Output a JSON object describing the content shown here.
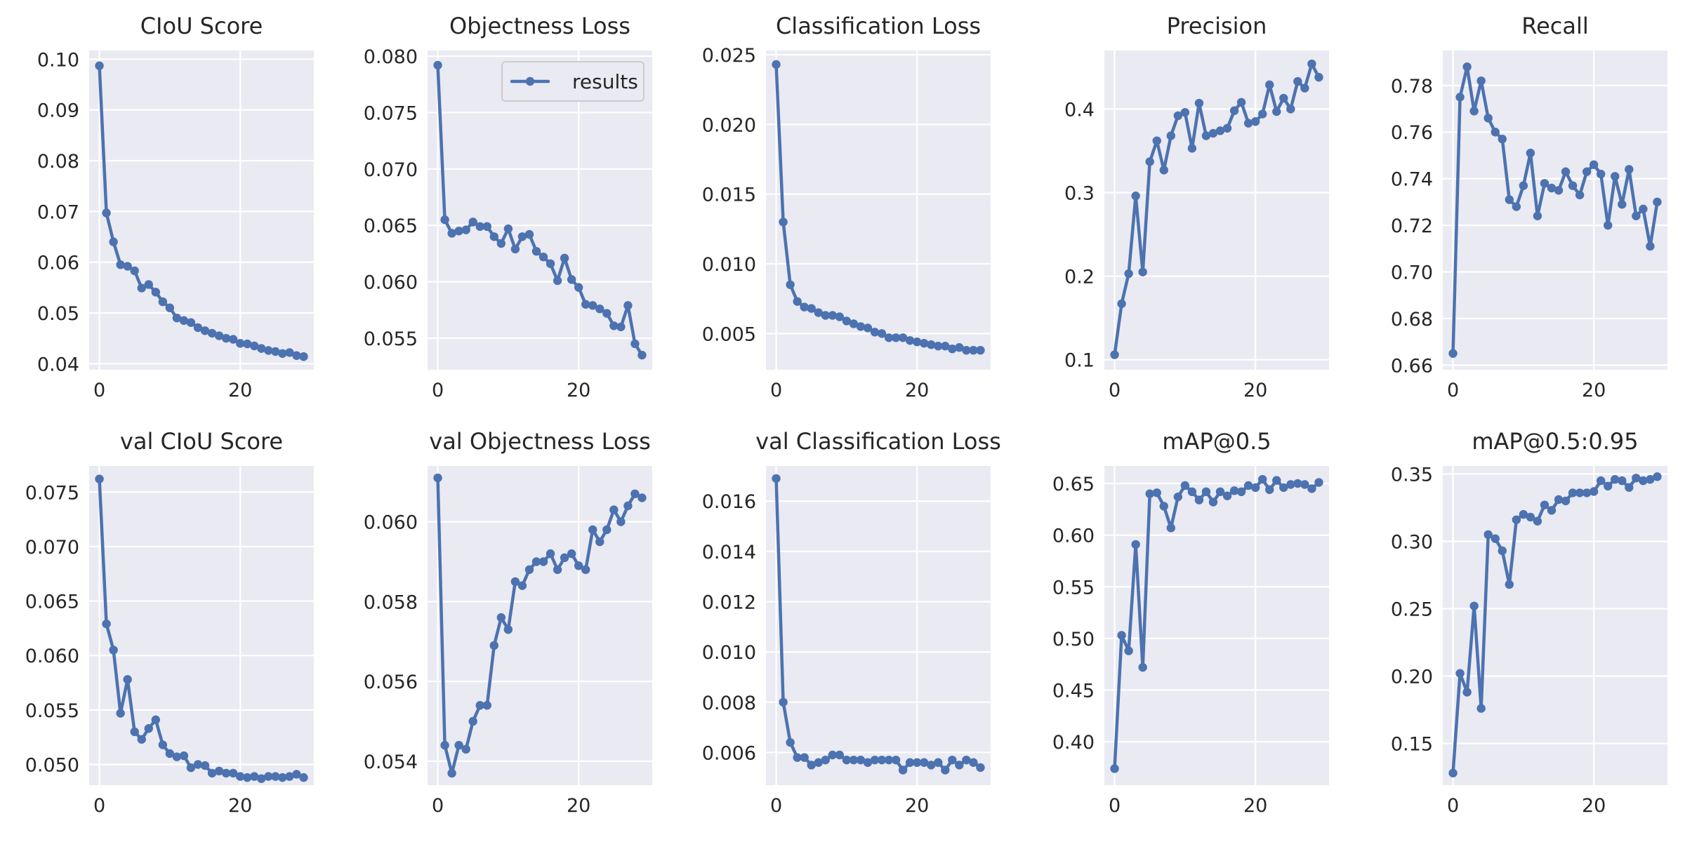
{
  "style": {
    "plot_background": "#EAEAF2",
    "grid_color": "#FFFFFF",
    "line_color": "#4C72B0",
    "text_color": "#262626"
  },
  "legend": {
    "label": "results",
    "panel": 1,
    "placement": "upper-right"
  },
  "chart_data": [
    {
      "type": "line",
      "title": "CIoU Score",
      "xlim": [
        -1.45,
        30.45
      ],
      "ylim": [
        0.0388,
        0.1017
      ],
      "xticks": [
        0,
        20
      ],
      "xtick_labels": [
        "0",
        "20"
      ],
      "yticks": [
        0.04,
        0.05,
        0.06,
        0.07,
        0.08,
        0.09,
        0.1
      ],
      "ytick_labels": [
        "0.04",
        "0.05",
        "0.06",
        "0.07",
        "0.08",
        "0.09",
        "0.10"
      ],
      "x": [
        0,
        1,
        2,
        3,
        4,
        5,
        6,
        7,
        8,
        9,
        10,
        11,
        12,
        13,
        14,
        15,
        16,
        17,
        18,
        19,
        20,
        21,
        22,
        23,
        24,
        25,
        26,
        27,
        28,
        29
      ],
      "series": [
        {
          "values": [
            0.0987,
            0.0697,
            0.064,
            0.0595,
            0.0592,
            0.0583,
            0.0549,
            0.0556,
            0.0541,
            0.0522,
            0.051,
            0.049,
            0.0485,
            0.0481,
            0.0471,
            0.0465,
            0.046,
            0.0455,
            0.045,
            0.0448,
            0.044,
            0.0439,
            0.0435,
            0.043,
            0.0426,
            0.0424,
            0.042,
            0.0422,
            0.0416,
            0.0414
          ]
        }
      ]
    },
    {
      "type": "line",
      "title": "Objectness Loss",
      "xlim": [
        -1.45,
        30.45
      ],
      "ylim": [
        0.0522,
        0.0805
      ],
      "xticks": [
        0,
        20
      ],
      "xtick_labels": [
        "0",
        "20"
      ],
      "yticks": [
        0.055,
        0.06,
        0.065,
        0.07,
        0.075,
        0.08
      ],
      "ytick_labels": [
        "0.055",
        "0.060",
        "0.065",
        "0.070",
        "0.075",
        "0.080"
      ],
      "x": [
        0,
        1,
        2,
        3,
        4,
        5,
        6,
        7,
        8,
        9,
        10,
        11,
        12,
        13,
        14,
        15,
        16,
        17,
        18,
        19,
        20,
        21,
        22,
        23,
        24,
        25,
        26,
        27,
        28,
        29
      ],
      "series": [
        {
          "name": "results",
          "values": [
            0.0792,
            0.0655,
            0.0643,
            0.0645,
            0.0646,
            0.0653,
            0.0649,
            0.0649,
            0.064,
            0.0634,
            0.0647,
            0.0629,
            0.064,
            0.0642,
            0.0627,
            0.0622,
            0.0616,
            0.0601,
            0.0621,
            0.0602,
            0.0595,
            0.058,
            0.0579,
            0.0576,
            0.0572,
            0.0561,
            0.056,
            0.0579,
            0.0545,
            0.0535
          ]
        }
      ]
    },
    {
      "type": "line",
      "title": "Classification Loss",
      "xlim": [
        -1.45,
        30.45
      ],
      "ylim": [
        0.0024,
        0.0253
      ],
      "xticks": [
        0,
        20
      ],
      "xtick_labels": [
        "0",
        "20"
      ],
      "yticks": [
        0.005,
        0.01,
        0.015,
        0.02,
        0.025
      ],
      "ytick_labels": [
        "0.005",
        "0.010",
        "0.015",
        "0.020",
        "0.025"
      ],
      "x": [
        0,
        1,
        2,
        3,
        4,
        5,
        6,
        7,
        8,
        9,
        10,
        11,
        12,
        13,
        14,
        15,
        16,
        17,
        18,
        19,
        20,
        21,
        22,
        23,
        24,
        25,
        26,
        27,
        28,
        29
      ],
      "series": [
        {
          "values": [
            0.0243,
            0.013,
            0.0085,
            0.0073,
            0.0069,
            0.0068,
            0.0065,
            0.0063,
            0.0063,
            0.0062,
            0.0059,
            0.0057,
            0.0055,
            0.0054,
            0.0051,
            0.005,
            0.0047,
            0.0047,
            0.0047,
            0.0045,
            0.0044,
            0.0043,
            0.0042,
            0.0041,
            0.0041,
            0.0039,
            0.004,
            0.0038,
            0.0038,
            0.0038
          ]
        }
      ]
    },
    {
      "type": "line",
      "title": "Precision",
      "xlim": [
        -1.45,
        30.45
      ],
      "ylim": [
        0.088,
        0.47
      ],
      "xticks": [
        0,
        20
      ],
      "xtick_labels": [
        "0",
        "20"
      ],
      "yticks": [
        0.1,
        0.2,
        0.3,
        0.4
      ],
      "ytick_labels": [
        "0.1",
        "0.2",
        "0.3",
        "0.4"
      ],
      "x": [
        0,
        1,
        2,
        3,
        4,
        5,
        6,
        7,
        8,
        9,
        10,
        11,
        12,
        13,
        14,
        15,
        16,
        17,
        18,
        19,
        20,
        21,
        22,
        23,
        24,
        25,
        26,
        27,
        28,
        29
      ],
      "series": [
        {
          "values": [
            0.106,
            0.167,
            0.203,
            0.296,
            0.205,
            0.337,
            0.362,
            0.327,
            0.368,
            0.392,
            0.396,
            0.353,
            0.407,
            0.368,
            0.371,
            0.374,
            0.377,
            0.398,
            0.408,
            0.383,
            0.385,
            0.394,
            0.429,
            0.397,
            0.413,
            0.4,
            0.433,
            0.425,
            0.454,
            0.438
          ]
        }
      ]
    },
    {
      "type": "line",
      "title": "Recall",
      "xlim": [
        -1.45,
        30.45
      ],
      "ylim": [
        0.658,
        0.795
      ],
      "xticks": [
        0,
        20
      ],
      "xtick_labels": [
        "0",
        "20"
      ],
      "yticks": [
        0.66,
        0.68,
        0.7,
        0.72,
        0.74,
        0.76,
        0.78
      ],
      "ytick_labels": [
        "0.66",
        "0.68",
        "0.70",
        "0.72",
        "0.74",
        "0.76",
        "0.78"
      ],
      "x": [
        0,
        1,
        2,
        3,
        4,
        5,
        6,
        7,
        8,
        9,
        10,
        11,
        12,
        13,
        14,
        15,
        16,
        17,
        18,
        19,
        20,
        21,
        22,
        23,
        24,
        25,
        26,
        27,
        28,
        29
      ],
      "series": [
        {
          "values": [
            0.665,
            0.775,
            0.788,
            0.769,
            0.782,
            0.766,
            0.76,
            0.757,
            0.731,
            0.728,
            0.737,
            0.751,
            0.724,
            0.738,
            0.736,
            0.735,
            0.743,
            0.737,
            0.733,
            0.743,
            0.746,
            0.742,
            0.72,
            0.741,
            0.729,
            0.744,
            0.724,
            0.727,
            0.711,
            0.73
          ]
        }
      ]
    },
    {
      "type": "line",
      "title": "val CIoU Score",
      "xlim": [
        -1.45,
        30.45
      ],
      "ylim": [
        0.0481,
        0.0774
      ],
      "xticks": [
        0,
        20
      ],
      "xtick_labels": [
        "0",
        "20"
      ],
      "yticks": [
        0.05,
        0.055,
        0.06,
        0.065,
        0.07,
        0.075
      ],
      "ytick_labels": [
        "0.050",
        "0.055",
        "0.060",
        "0.065",
        "0.070",
        "0.075"
      ],
      "x": [
        0,
        1,
        2,
        3,
        4,
        5,
        6,
        7,
        8,
        9,
        10,
        11,
        12,
        13,
        14,
        15,
        16,
        17,
        18,
        19,
        20,
        21,
        22,
        23,
        24,
        25,
        26,
        27,
        28,
        29
      ],
      "series": [
        {
          "values": [
            0.0762,
            0.0629,
            0.0605,
            0.0547,
            0.0578,
            0.053,
            0.0523,
            0.0533,
            0.0541,
            0.0518,
            0.051,
            0.0507,
            0.0508,
            0.0497,
            0.05,
            0.0499,
            0.0492,
            0.0494,
            0.0492,
            0.0492,
            0.0489,
            0.0488,
            0.0489,
            0.0487,
            0.0489,
            0.0489,
            0.0488,
            0.0489,
            0.0491,
            0.0488
          ]
        }
      ]
    },
    {
      "type": "line",
      "title": "val Objectness Loss",
      "xlim": [
        -1.45,
        30.45
      ],
      "ylim": [
        0.0534,
        0.0614
      ],
      "xticks": [
        0,
        20
      ],
      "xtick_labels": [
        "0",
        "20"
      ],
      "yticks": [
        0.054,
        0.056,
        0.058,
        0.06
      ],
      "ytick_labels": [
        "0.054",
        "0.056",
        "0.058",
        "0.060"
      ],
      "x": [
        0,
        1,
        2,
        3,
        4,
        5,
        6,
        7,
        8,
        9,
        10,
        11,
        12,
        13,
        14,
        15,
        16,
        17,
        18,
        19,
        20,
        21,
        22,
        23,
        24,
        25,
        26,
        27,
        28,
        29
      ],
      "series": [
        {
          "values": [
            0.0611,
            0.0544,
            0.0537,
            0.0544,
            0.0543,
            0.055,
            0.0554,
            0.0554,
            0.0569,
            0.0576,
            0.0573,
            0.0585,
            0.0584,
            0.0588,
            0.059,
            0.059,
            0.0592,
            0.0588,
            0.0591,
            0.0592,
            0.0589,
            0.0588,
            0.0598,
            0.0595,
            0.0598,
            0.0603,
            0.06,
            0.0604,
            0.0607,
            0.0606
          ]
        }
      ]
    },
    {
      "type": "line",
      "title": "val Classification Loss",
      "xlim": [
        -1.45,
        30.45
      ],
      "ylim": [
        0.0047,
        0.0174
      ],
      "xticks": [
        0,
        20
      ],
      "xtick_labels": [
        "0",
        "20"
      ],
      "yticks": [
        0.006,
        0.008,
        0.01,
        0.012,
        0.014,
        0.016
      ],
      "ytick_labels": [
        "0.006",
        "0.008",
        "0.010",
        "0.012",
        "0.014",
        "0.016"
      ],
      "x": [
        0,
        1,
        2,
        3,
        4,
        5,
        6,
        7,
        8,
        9,
        10,
        11,
        12,
        13,
        14,
        15,
        16,
        17,
        18,
        19,
        20,
        21,
        22,
        23,
        24,
        25,
        26,
        27,
        28,
        29
      ],
      "series": [
        {
          "values": [
            0.0169,
            0.008,
            0.0064,
            0.0058,
            0.0058,
            0.0055,
            0.0056,
            0.0057,
            0.0059,
            0.0059,
            0.0057,
            0.0057,
            0.0057,
            0.0056,
            0.0057,
            0.0057,
            0.0057,
            0.0057,
            0.0053,
            0.0056,
            0.0056,
            0.0056,
            0.0055,
            0.0056,
            0.0053,
            0.0057,
            0.0055,
            0.0057,
            0.0056,
            0.0054
          ]
        }
      ]
    },
    {
      "type": "line",
      "title": "mAP@0.5",
      "xlim": [
        -1.45,
        30.45
      ],
      "ylim": [
        0.358,
        0.667
      ],
      "xticks": [
        0,
        20
      ],
      "xtick_labels": [
        "0",
        "20"
      ],
      "yticks": [
        0.4,
        0.45,
        0.5,
        0.55,
        0.6,
        0.65
      ],
      "ytick_labels": [
        "0.40",
        "0.45",
        "0.50",
        "0.55",
        "0.60",
        "0.65"
      ],
      "x": [
        0,
        1,
        2,
        3,
        4,
        5,
        6,
        7,
        8,
        9,
        10,
        11,
        12,
        13,
        14,
        15,
        16,
        17,
        18,
        19,
        20,
        21,
        22,
        23,
        24,
        25,
        26,
        27,
        28,
        29
      ],
      "series": [
        {
          "values": [
            0.374,
            0.503,
            0.488,
            0.591,
            0.472,
            0.64,
            0.641,
            0.628,
            0.607,
            0.637,
            0.648,
            0.642,
            0.634,
            0.642,
            0.632,
            0.642,
            0.638,
            0.643,
            0.642,
            0.648,
            0.646,
            0.654,
            0.644,
            0.653,
            0.646,
            0.649,
            0.65,
            0.649,
            0.645,
            0.651
          ]
        }
      ]
    },
    {
      "type": "line",
      "title": "mAP@0.5:0.95",
      "xlim": [
        -1.45,
        30.45
      ],
      "ylim": [
        0.119,
        0.356
      ],
      "xticks": [
        0,
        20
      ],
      "xtick_labels": [
        "0",
        "20"
      ],
      "yticks": [
        0.15,
        0.2,
        0.25,
        0.3,
        0.35
      ],
      "ytick_labels": [
        "0.15",
        "0.20",
        "0.25",
        "0.30",
        "0.35"
      ],
      "x": [
        0,
        1,
        2,
        3,
        4,
        5,
        6,
        7,
        8,
        9,
        10,
        11,
        12,
        13,
        14,
        15,
        16,
        17,
        18,
        19,
        20,
        21,
        22,
        23,
        24,
        25,
        26,
        27,
        28,
        29
      ],
      "series": [
        {
          "values": [
            0.128,
            0.202,
            0.188,
            0.252,
            0.176,
            0.305,
            0.302,
            0.293,
            0.268,
            0.316,
            0.32,
            0.318,
            0.315,
            0.327,
            0.323,
            0.331,
            0.33,
            0.336,
            0.336,
            0.336,
            0.337,
            0.345,
            0.341,
            0.346,
            0.345,
            0.34,
            0.347,
            0.345,
            0.346,
            0.348
          ]
        }
      ]
    }
  ]
}
